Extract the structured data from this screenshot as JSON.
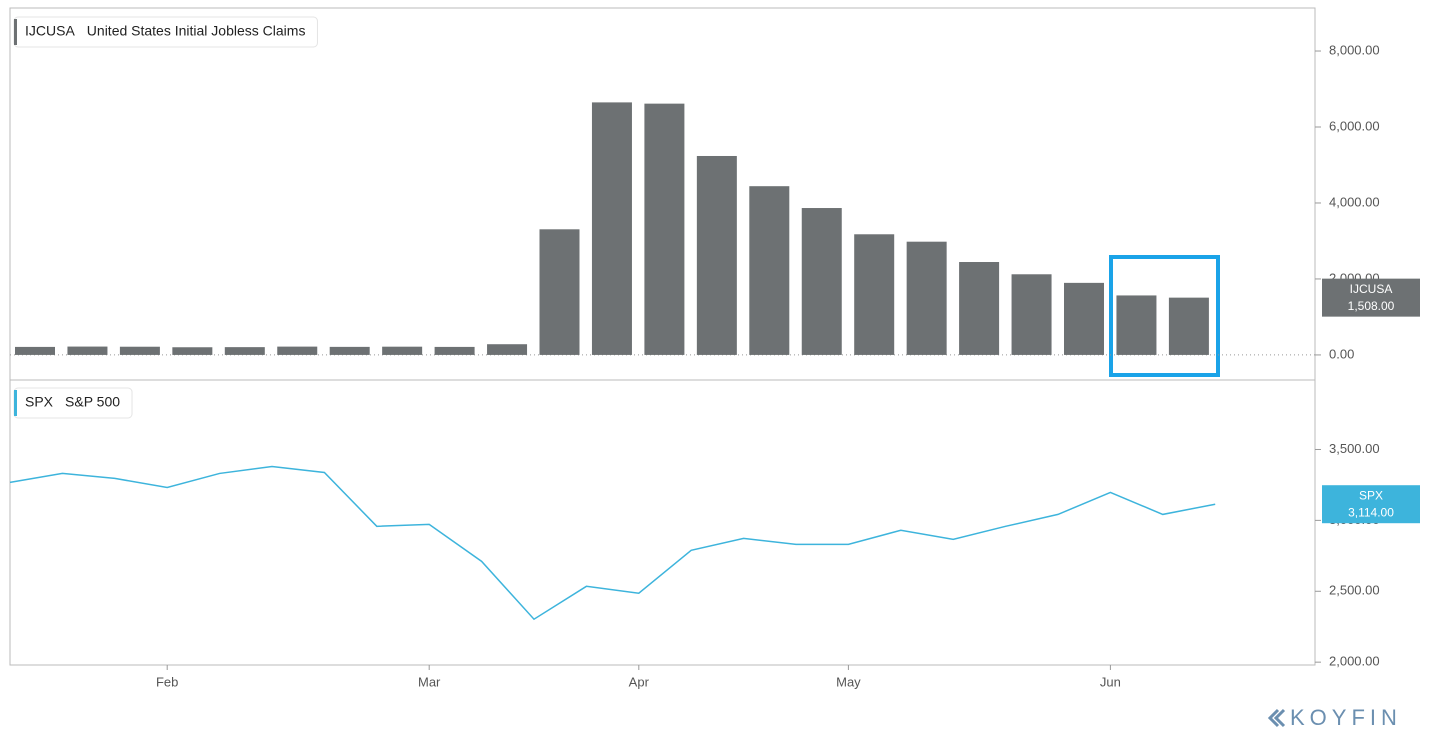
{
  "chart_data": [
    {
      "type": "bar",
      "series": [
        {
          "name": "IJCUSA",
          "description": "United States Initial Jobless Claims",
          "color": "#6d7173",
          "values": [
            211,
            220,
            216,
            202,
            205,
            219,
            212,
            217,
            211,
            282,
            3307,
            6648,
            6615,
            5237,
            4442,
            3867,
            3176,
            2981,
            2446,
            2123,
            1897,
            1566,
            1508
          ],
          "value_labels": [
            null,
            null,
            null,
            null,
            null,
            null,
            null,
            null,
            null,
            null,
            null,
            null,
            null,
            null,
            null,
            null,
            null,
            null,
            null,
            null,
            null,
            null,
            "1,508.00"
          ]
        }
      ],
      "ylim": [
        -660,
        9080
      ],
      "yticks": [
        {
          "value": 0,
          "label": "0.00"
        },
        {
          "value": 2000,
          "label": "2,000.00"
        },
        {
          "value": 4000,
          "label": "4,000.00"
        },
        {
          "value": 6000,
          "label": "6,000.00"
        },
        {
          "value": 8000,
          "label": "8,000.00"
        }
      ]
    },
    {
      "type": "line",
      "categories": [
        null,
        null,
        null,
        "Feb",
        null,
        null,
        null,
        null,
        "Mar",
        null,
        null,
        null,
        "Apr",
        null,
        null,
        null,
        "May",
        null,
        null,
        null,
        null,
        "Jun",
        null,
        null
      ],
      "series": [
        {
          "name": "SPX",
          "description": "S&P 500",
          "color": "#3db4dc",
          "values": [
            3268,
            3331,
            3296,
            3232,
            3331,
            3380,
            3338,
            2958,
            2972,
            2711,
            2303,
            2535,
            2486,
            2789,
            2873,
            2831,
            2831,
            2930,
            2866,
            2958,
            3042,
            3197,
            3042,
            3114
          ],
          "value_labels": [
            null,
            null,
            null,
            null,
            null,
            null,
            null,
            null,
            null,
            null,
            null,
            null,
            null,
            null,
            null,
            null,
            null,
            null,
            null,
            null,
            null,
            null,
            null,
            "3,114.00"
          ]
        }
      ],
      "ylim": [
        1980,
        3990
      ],
      "yticks": [
        {
          "value": 2000,
          "label": "2,000.00"
        },
        {
          "value": 2500,
          "label": "2,500.00"
        },
        {
          "value": 3000,
          "label": "3,000.00"
        },
        {
          "value": 3500,
          "label": "3,500.00"
        }
      ]
    }
  ],
  "branding": "KOYFIN"
}
